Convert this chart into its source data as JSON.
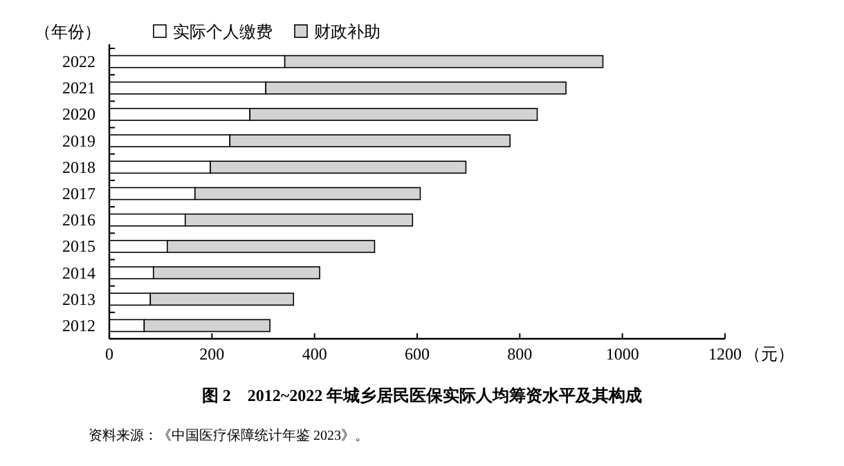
{
  "chart_data": {
    "type": "bar",
    "orientation": "horizontal",
    "stacked": true,
    "title": "图 2　2012~2022 年城乡居民医保实际人均筹资水平及其构成",
    "ylabel": "（年份）",
    "xlabel": "（元）",
    "annotations": [
      "资料来源：《中国医疗保障统计年鉴 2023》。"
    ],
    "categories": [
      "2022",
      "2021",
      "2020",
      "2019",
      "2018",
      "2017",
      "2016",
      "2015",
      "2014",
      "2013",
      "2012"
    ],
    "series": [
      {
        "name": "实际个人缴费",
        "color": "#ffffff",
        "values": [
          342,
          305,
          274,
          235,
          197,
          167,
          148,
          113,
          86,
          80,
          68
        ]
      },
      {
        "name": "财政补助",
        "color": "#d3d3d3",
        "values": [
          620,
          585,
          560,
          546,
          498,
          439,
          443,
          404,
          324,
          279,
          245
        ]
      }
    ],
    "xlim": [
      0,
      1200
    ],
    "xticks": [
      0,
      200,
      400,
      600,
      800,
      1000,
      1200
    ],
    "grid": false,
    "legend": "top left"
  }
}
